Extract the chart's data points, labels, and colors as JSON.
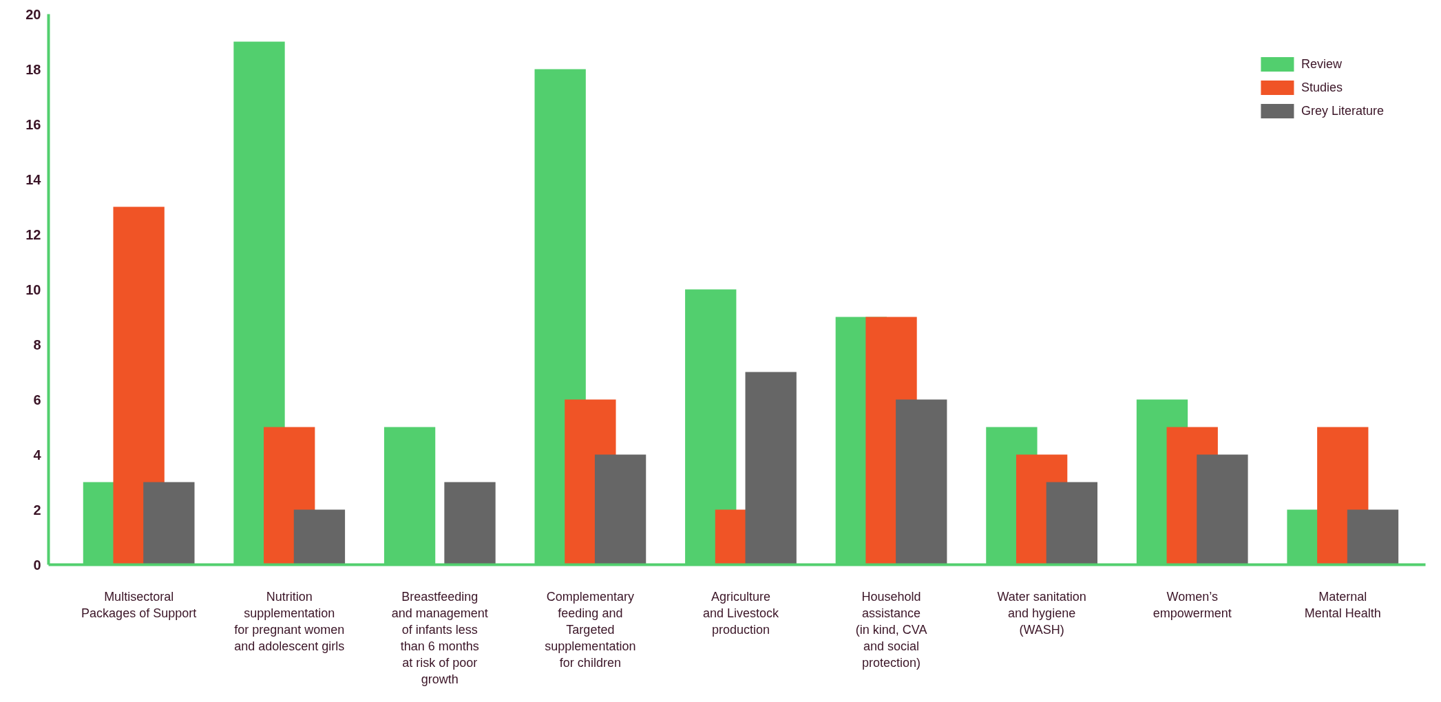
{
  "chart_data": {
    "type": "bar",
    "categories": [
      "Multisectoral\nPackages of Support",
      "Nutrition\nsupplementation\nfor pregnant women\nand adolescent girls",
      "Breastfeeding\nand management\nof infants less\nthan 6 months\nat risk of poor\ngrowth",
      "Complementary\nfeeding and\nTargeted\nsupplementation\nfor children",
      "Agriculture\nand Livestock\nproduction",
      "Household\nassistance\n(in kind, CVA\nand social\nprotection)",
      "Water sanitation\nand hygiene\n(WASH)",
      "Women’s\nempowerment",
      "Maternal\nMental Health"
    ],
    "series": [
      {
        "name": "Review",
        "color": "#52cf6e",
        "values": [
          3,
          19,
          5,
          18,
          10,
          9,
          5,
          6,
          2
        ]
      },
      {
        "name": "Studies",
        "color": "#f05426",
        "values": [
          13,
          5,
          null,
          6,
          2,
          9,
          4,
          5,
          5
        ]
      },
      {
        "name": "Grey Literature",
        "color": "#666666",
        "values": [
          3,
          2,
          3,
          4,
          7,
          6,
          3,
          4,
          2
        ]
      }
    ],
    "ylim": [
      0,
      20
    ],
    "yticks": [
      0,
      2,
      4,
      6,
      8,
      10,
      12,
      14,
      16,
      18,
      20
    ],
    "grid": false,
    "legend": "top right"
  }
}
